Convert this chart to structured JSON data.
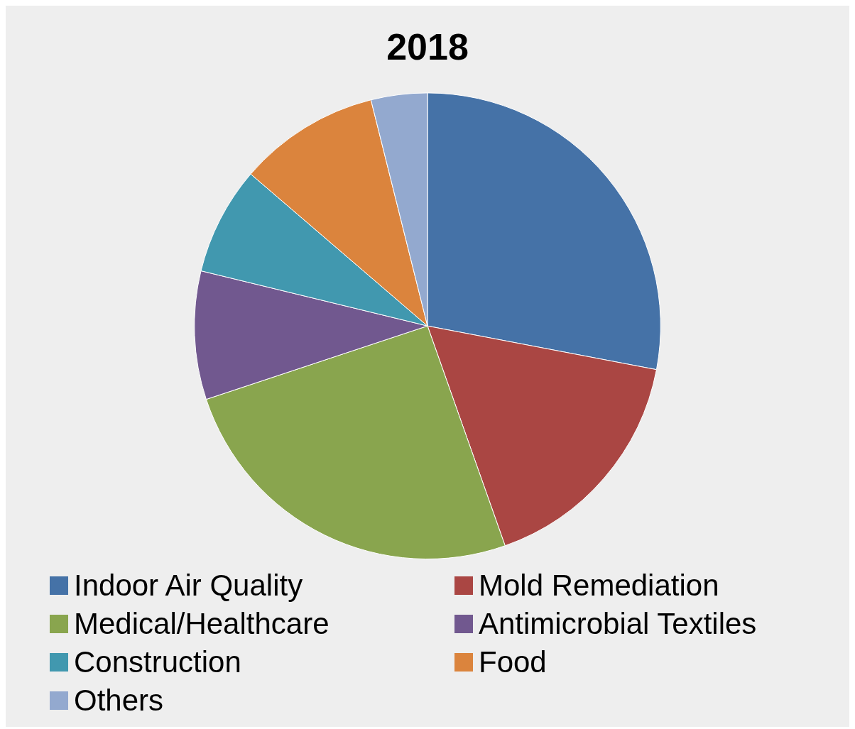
{
  "chart_data": {
    "type": "pie",
    "title": "2018",
    "categories": [
      "Indoor Air Quality",
      "Mold Remediation",
      "Medical/Healthcare",
      "Antimicrobial Textiles",
      "Construction",
      "Food",
      "Others"
    ],
    "values": [
      28.0,
      16.6,
      25.3,
      8.9,
      7.5,
      9.8,
      3.9
    ],
    "colors": [
      "#4572a7",
      "#aa4643",
      "#89a54e",
      "#71588f",
      "#4198af",
      "#db843d",
      "#93a9cf"
    ],
    "legend": "bottom"
  }
}
